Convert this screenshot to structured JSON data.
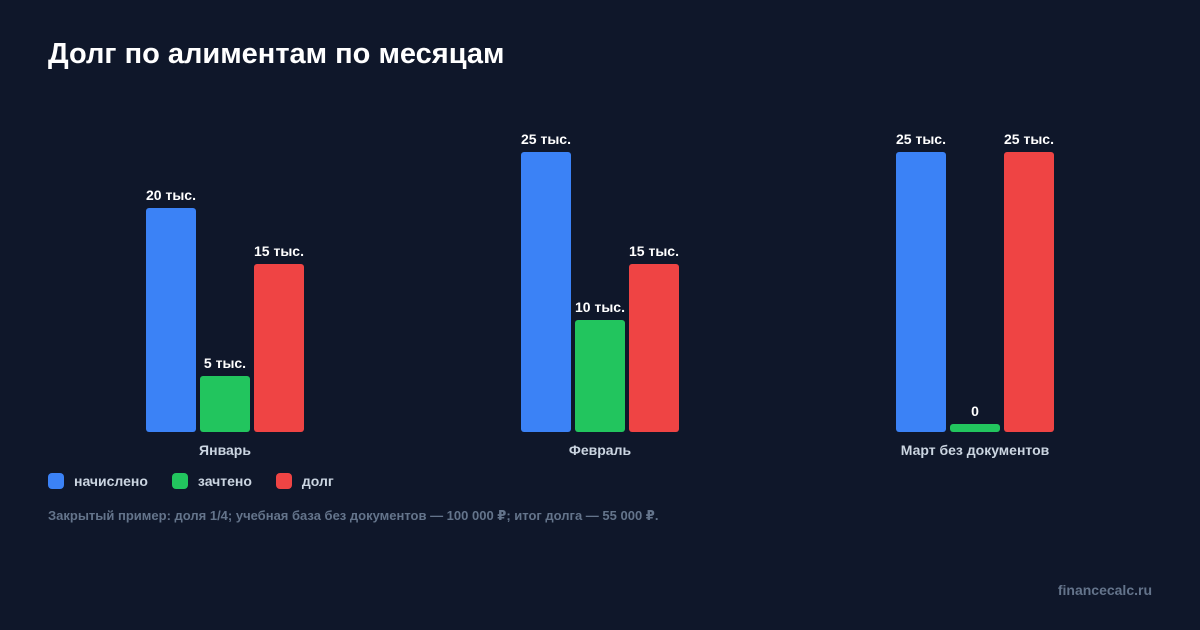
{
  "title": "Долг по алиментам по месяцам",
  "legend": [
    {
      "label": "начислено",
      "color": "#3b82f6"
    },
    {
      "label": "зачтено",
      "color": "#22c55e"
    },
    {
      "label": "долг",
      "color": "#ef4444"
    }
  ],
  "footnote": "Закрытый пример: доля 1/4; учебная база без документов — 100 000 ₽; итог долга — 55 000 ₽.",
  "watermark": "financecalc.ru",
  "chart_data": {
    "type": "bar",
    "categories": [
      "Январь",
      "Февраль",
      "Март без документов"
    ],
    "series": [
      {
        "name": "начислено",
        "color": "#3b82f6",
        "values": [
          20000,
          25000,
          25000
        ],
        "labels": [
          "20 тыс.",
          "25 тыс.",
          "25 тыс."
        ]
      },
      {
        "name": "зачтено",
        "color": "#22c55e",
        "values": [
          5000,
          10000,
          0
        ],
        "labels": [
          "5 тыс.",
          "10 тыс.",
          "0"
        ]
      },
      {
        "name": "долг",
        "color": "#ef4444",
        "values": [
          15000,
          15000,
          25000
        ],
        "labels": [
          "15 тыс.",
          "15 тыс.",
          "25 тыс."
        ]
      }
    ],
    "ylim": [
      0,
      25000
    ],
    "grid": false,
    "legend_position": "bottom-left"
  }
}
